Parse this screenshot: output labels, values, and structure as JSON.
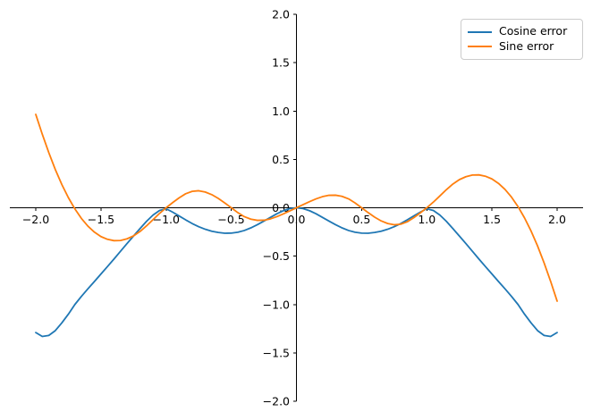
{
  "figure": {
    "background": "#ffffff",
    "title": "",
    "legend": {
      "position": "upper right",
      "entries": [
        {
          "label": "Cosine error",
          "color": "#1f77b4"
        },
        {
          "label": "Sine error",
          "color": "#ff7f0e"
        }
      ]
    }
  },
  "chart_data": {
    "type": "line",
    "title": "",
    "xlabel": "",
    "ylabel": "",
    "grid": false,
    "axes_style": "spines centered at x=0 and y=0",
    "xlim": [
      -2.2,
      2.2
    ],
    "ylim": [
      -2.0,
      2.0
    ],
    "x_ticks": [
      -2.0,
      -1.5,
      -1.0,
      -0.5,
      0.0,
      0.5,
      1.0,
      1.5,
      2.0
    ],
    "x_tick_labels": [
      "−2.0",
      "−1.5",
      "−1.0",
      "−0.5",
      "0.0",
      "0.5",
      "1.0",
      "1.5",
      "2.0"
    ],
    "y_ticks": [
      2.0,
      1.5,
      1.0,
      0.5,
      0.0,
      -0.5,
      -1.0,
      -1.5,
      -2.0
    ],
    "y_tick_labels": [
      "2.0",
      "1.5",
      "1.0",
      "0.5",
      "0.0",
      "−0.5",
      "−1.0",
      "−1.5",
      "−2.0"
    ],
    "legend_position": "upper right",
    "x_range": [
      -2.0,
      2.0
    ],
    "x_step": 0.05,
    "series": [
      {
        "name": "Cosine error",
        "color": "#1f77b4",
        "line_width": 1.8,
        "values": [
          -1.29,
          -1.33,
          -1.32,
          -1.27,
          -1.19,
          -1.1,
          -1.0,
          -0.916,
          -0.838,
          -0.762,
          -0.685,
          -0.608,
          -0.53,
          -0.45,
          -0.37,
          -0.292,
          -0.215,
          -0.14,
          -0.075,
          -0.028,
          -0.01,
          -0.045,
          -0.085,
          -0.125,
          -0.163,
          -0.196,
          -0.222,
          -0.242,
          -0.255,
          -0.263,
          -0.262,
          -0.253,
          -0.235,
          -0.208,
          -0.175,
          -0.138,
          -0.1,
          -0.062,
          -0.03,
          -0.008,
          0.0,
          -0.008,
          -0.03,
          -0.062,
          -0.1,
          -0.138,
          -0.175,
          -0.208,
          -0.235,
          -0.253,
          -0.262,
          -0.263,
          -0.255,
          -0.242,
          -0.222,
          -0.196,
          -0.163,
          -0.125,
          -0.085,
          -0.045,
          -0.01,
          -0.028,
          -0.075,
          -0.14,
          -0.215,
          -0.292,
          -0.37,
          -0.45,
          -0.53,
          -0.608,
          -0.685,
          -0.762,
          -0.838,
          -0.916,
          -1.0,
          -1.1,
          -1.19,
          -1.27,
          -1.32,
          -1.33,
          -1.29
        ]
      },
      {
        "name": "Sine error",
        "color": "#ff7f0e",
        "line_width": 1.8,
        "values": [
          0.965,
          0.76,
          0.57,
          0.395,
          0.24,
          0.105,
          -0.012,
          -0.11,
          -0.19,
          -0.252,
          -0.298,
          -0.326,
          -0.34,
          -0.338,
          -0.321,
          -0.291,
          -0.245,
          -0.187,
          -0.122,
          -0.058,
          0.0,
          0.053,
          0.103,
          0.145,
          0.17,
          0.176,
          0.163,
          0.136,
          0.097,
          0.05,
          0.0,
          -0.05,
          -0.092,
          -0.118,
          -0.13,
          -0.129,
          -0.115,
          -0.092,
          -0.063,
          -0.032,
          0.0,
          0.032,
          0.063,
          0.092,
          0.115,
          0.129,
          0.13,
          0.118,
          0.092,
          0.05,
          0.0,
          -0.05,
          -0.097,
          -0.136,
          -0.163,
          -0.176,
          -0.17,
          -0.145,
          -0.103,
          -0.053,
          0.0,
          0.058,
          0.122,
          0.187,
          0.245,
          0.291,
          0.321,
          0.338,
          0.34,
          0.326,
          0.298,
          0.252,
          0.19,
          0.11,
          0.012,
          -0.105,
          -0.24,
          -0.395,
          -0.57,
          -0.76,
          -0.965
        ]
      }
    ]
  }
}
